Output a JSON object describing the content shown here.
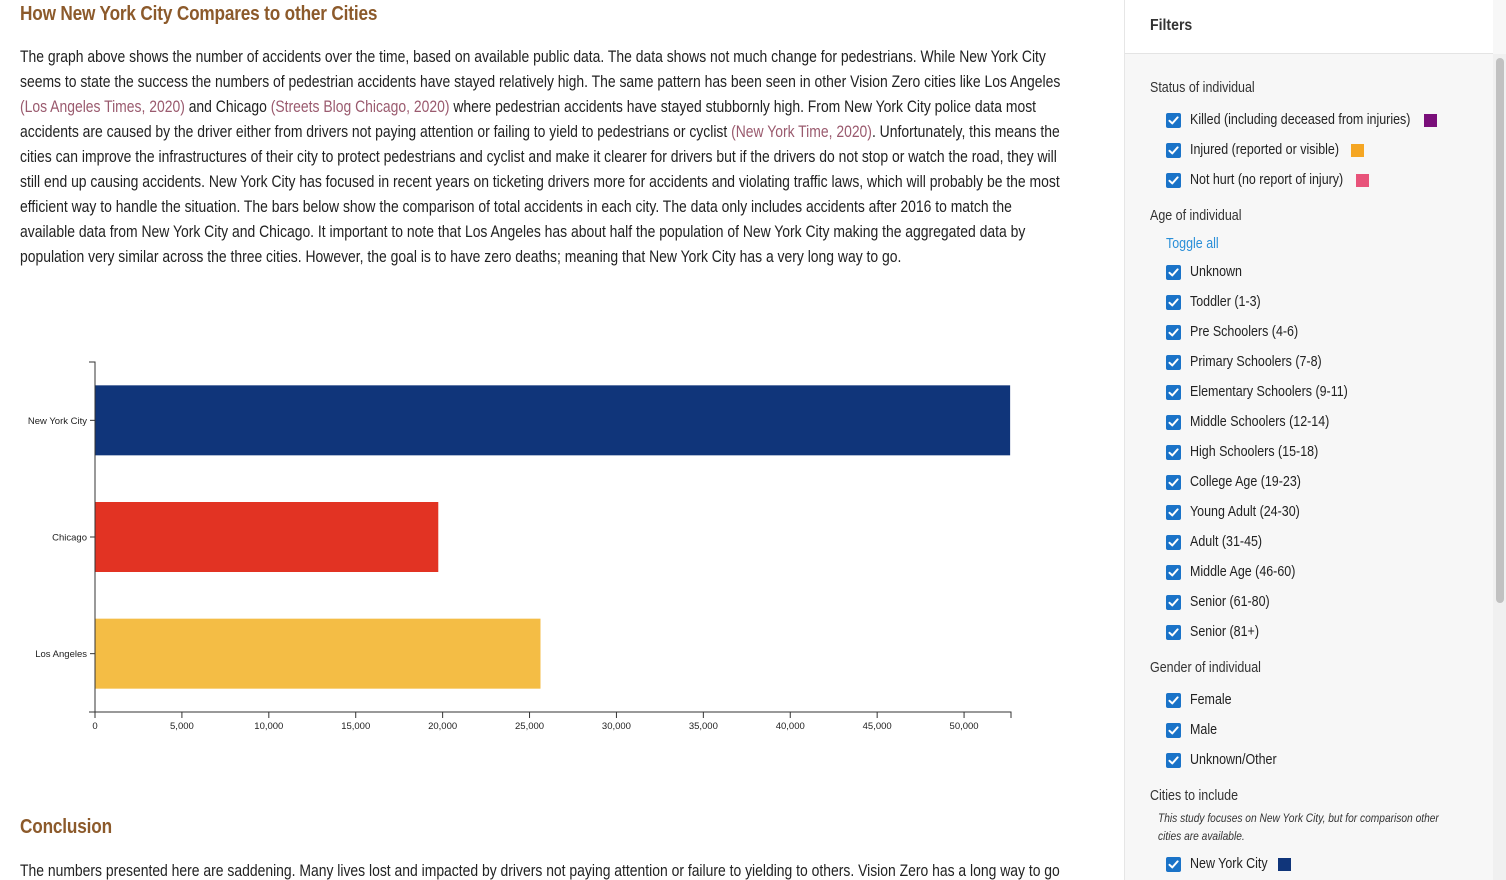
{
  "article": {
    "compare_heading": "How New York City Compares to other Cities",
    "p1": "The graph above shows the number of accidents over the time, based on available public data. The data shows not much change for pedestrians. While New York City seems to state the success the numbers of pedestrian accidents have stayed relatively high. The same pattern has been seen in other Vision Zero cities like Los Angeles ",
    "link1": "(Los Angeles Times, 2020)",
    "p2": " and Chicago ",
    "link2": "(Streets Blog Chicago, 2020)",
    "p3": " where pedestrian accidents have stayed stubbornly high. From New York City police data most accidents are caused by the driver either from drivers not paying attention or failing to yield to pedestrians or cyclist ",
    "link3": "(New York Time, 2020)",
    "p4": ". Unfortunately, this means the cities can improve the infrastructures of their city to protect pedestrians and cyclist and make it clearer for drivers but if the drivers do not stop or watch the road, they will still end up causing accidents. New York City has focused in recent years on ticketing drivers more for accidents and violating traffic laws, which will probably be the most efficient way to handle the situation. The bars below show the comparison of total accidents in each city. The data only includes accidents after 2016 to match the available data from New York City and Chicago. It important to note that Los Angeles has about half the population of New York City making the aggregated data by population very similar across the three cities. However, the goal is to have zero deaths; meaning that New York City has a very long way to go.",
    "conclusion_heading": "Conclusion",
    "conclusion_text": "The numbers presented here are saddening. Many lives lost and impacted by drivers not paying attention or failure to yielding to others. Vision Zero has a long way to go and"
  },
  "chart_data": {
    "type": "bar",
    "orientation": "horizontal",
    "categories": [
      "New York City",
      "Chicago",
      "Los Angeles"
    ],
    "values": [
      52650,
      19750,
      25630
    ],
    "colors": [
      "#10357a",
      "#e23323",
      "#f4bd45"
    ],
    "xlim": [
      0,
      52700
    ],
    "xticks": [
      0,
      5000,
      10000,
      15000,
      20000,
      25000,
      30000,
      35000,
      40000,
      45000,
      50000
    ],
    "xtick_labels": [
      "0",
      "5,000",
      "10,000",
      "15,000",
      "20,000",
      "25,000",
      "30,000",
      "35,000",
      "40,000",
      "45,000",
      "50,000"
    ],
    "title": "",
    "xlabel": "",
    "ylabel": "",
    "grid": false,
    "legend": "none"
  },
  "sidebar": {
    "title": "Filters",
    "status": {
      "heading": "Status of individual",
      "options": [
        {
          "label": "Killed (including deceased from injuries)",
          "checked": true,
          "color": "#7a0f7a"
        },
        {
          "label": "Injured (reported or visible)",
          "checked": true,
          "color": "#f5a623"
        },
        {
          "label": "Not hurt (no report of injury)",
          "checked": true,
          "color": "#e8537a"
        }
      ]
    },
    "age": {
      "heading": "Age of individual",
      "toggle_all": "Toggle all",
      "options": [
        {
          "label": "Unknown",
          "checked": true
        },
        {
          "label": "Toddler (1-3)",
          "checked": true
        },
        {
          "label": "Pre Schoolers (4-6)",
          "checked": true
        },
        {
          "label": "Primary Schoolers (7-8)",
          "checked": true
        },
        {
          "label": "Elementary Schoolers (9-11)",
          "checked": true
        },
        {
          "label": "Middle Schoolers (12-14)",
          "checked": true
        },
        {
          "label": "High Schoolers (15-18)",
          "checked": true
        },
        {
          "label": "College Age (19-23)",
          "checked": true
        },
        {
          "label": "Young Adult (24-30)",
          "checked": true
        },
        {
          "label": "Adult (31-45)",
          "checked": true
        },
        {
          "label": "Middle Age (46-60)",
          "checked": true
        },
        {
          "label": "Senior (61-80)",
          "checked": true
        },
        {
          "label": "Senior (81+)",
          "checked": true
        }
      ]
    },
    "gender": {
      "heading": "Gender of individual",
      "options": [
        {
          "label": "Female",
          "checked": true
        },
        {
          "label": "Male",
          "checked": true
        },
        {
          "label": "Unknown/Other",
          "checked": true
        }
      ]
    },
    "cities": {
      "heading": "Cities to include",
      "note": "This study focuses on New York City, but for comparison other cities are available.",
      "options": [
        {
          "label": "New York City",
          "checked": true,
          "color": "#10357a"
        }
      ]
    }
  }
}
